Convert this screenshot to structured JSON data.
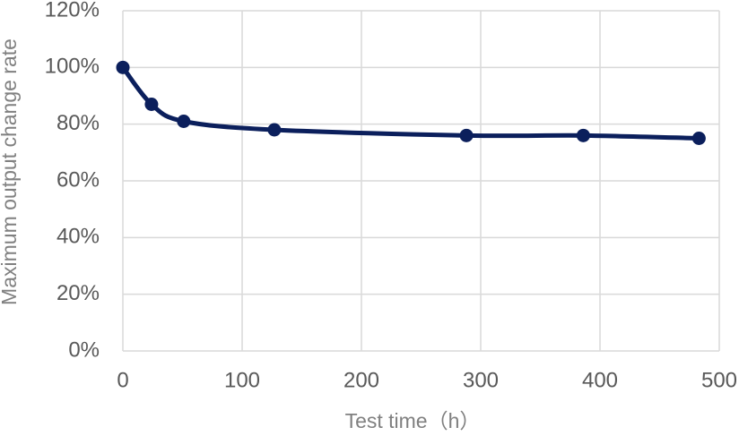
{
  "chart_data": {
    "type": "line",
    "x_label": "Test time（h）",
    "y_label": "Maximum output change rate",
    "x": [
      0,
      24,
      51,
      127,
      288,
      386,
      483
    ],
    "series": [
      {
        "color": "#0b1f5c",
        "values": [
          100,
          87,
          81,
          78,
          76,
          76,
          75
        ]
      }
    ],
    "xlim": [
      0,
      500
    ],
    "xticks": [
      0,
      100,
      200,
      300,
      400,
      500
    ],
    "ylim": [
      0,
      120
    ],
    "yticks": [
      {
        "value": 0,
        "label": "0%"
      },
      {
        "value": 20,
        "label": "20%"
      },
      {
        "value": 40,
        "label": "40%"
      },
      {
        "value": 60,
        "label": "60%"
      },
      {
        "value": 80,
        "label": "80%"
      },
      {
        "value": 100,
        "label": "100%"
      },
      {
        "value": 120,
        "label": "120%"
      }
    ],
    "grid": true,
    "smooth": true
  }
}
